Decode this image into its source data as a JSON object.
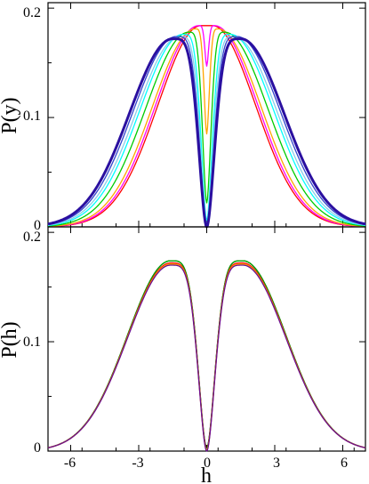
{
  "chart_data": [
    {
      "type": "line",
      "panel": "top",
      "title": "",
      "xlabel": "",
      "ylabel": "P(y)",
      "xlim": [
        -7,
        7
      ],
      "ylim": [
        0,
        0.205
      ],
      "xticks": [
        -6,
        -3,
        0,
        3,
        6
      ],
      "yticks": [
        0,
        0.1,
        0.2
      ],
      "ytick_labels": [
        "0",
        "0.1",
        "0.2"
      ],
      "xtick_labels_shown": false,
      "grid": false,
      "legend": "none",
      "series": [
        {
          "color": "#ff0000",
          "peak_x": 0.25,
          "peak_y": 0.184,
          "dip_x": 0,
          "dip_y": 0.184
        },
        {
          "color": "#ff00ff",
          "peak_x": 0.35,
          "peak_y": 0.184,
          "dip_x": 0,
          "dip_y": 0.147
        },
        {
          "color": "#ffa500",
          "peak_x": 0.5,
          "peak_y": 0.181,
          "dip_x": 0,
          "dip_y": 0.085
        },
        {
          "color": "#00cc00",
          "peak_x": 0.8,
          "peak_y": 0.178,
          "dip_x": 0,
          "dip_y": 0.022
        },
        {
          "color": "#00ffff",
          "peak_x": 1.05,
          "peak_y": 0.176,
          "dip_x": 0,
          "dip_y": 0.006
        },
        {
          "color": "#87ceeb",
          "peak_x": 1.2,
          "peak_y": 0.174,
          "dip_x": 0,
          "dip_y": 0.003
        },
        {
          "color": "#3344cc",
          "peak_x": 1.35,
          "peak_y": 0.174,
          "dip_x": 0,
          "dip_y": 0.001
        },
        {
          "color": "#2a0fa0",
          "peak_x": 1.5,
          "peak_y": 0.172,
          "dip_x": 0,
          "dip_y": 0.0,
          "bold": true
        }
      ]
    },
    {
      "type": "line",
      "panel": "bottom",
      "title": "",
      "xlabel": "h",
      "ylabel": "P(h)",
      "xlim": [
        -7,
        7
      ],
      "ylim": [
        0,
        0.205
      ],
      "xticks": [
        -6,
        -3,
        0,
        3,
        6
      ],
      "xtick_labels": [
        "-6",
        "-3",
        "0",
        "3",
        "6"
      ],
      "yticks": [
        0,
        0.1,
        0.2
      ],
      "ytick_labels": [
        "0",
        "0.1",
        "0.2"
      ],
      "grid": false,
      "legend": "none",
      "series": [
        {
          "color": "#000000",
          "peak_x": 1.6,
          "peak_y": 0.174,
          "dip_x": 0,
          "dip_y": 0.003
        },
        {
          "color": "#00aa00",
          "peak_x": 1.6,
          "peak_y": 0.174,
          "dip_x": 0,
          "dip_y": 0.002
        },
        {
          "color": "#ff0000",
          "peak_x": 1.6,
          "peak_y": 0.172,
          "dip_x": 0,
          "dip_y": 0.001
        },
        {
          "color": "#ffa500",
          "peak_x": 1.6,
          "peak_y": 0.171,
          "dip_x": 0,
          "dip_y": 0.001
        },
        {
          "color": "#6a0d91",
          "peak_x": 1.6,
          "peak_y": 0.17,
          "dip_x": 0,
          "dip_y": 0.0
        }
      ]
    }
  ]
}
